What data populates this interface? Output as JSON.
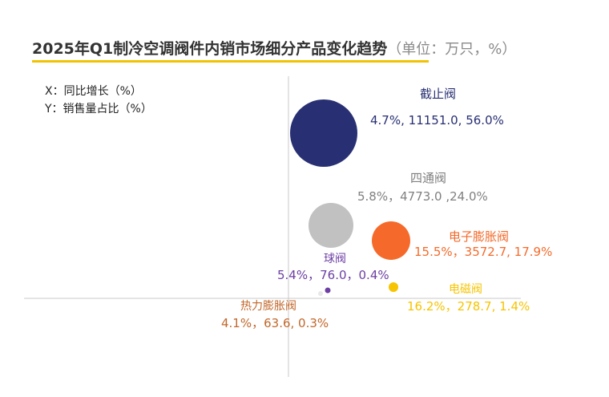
{
  "title": "2025年Q1制冷空调阀件内销市场细分产品变化趋势",
  "unit": "（单位：万只，%）",
  "axis_notes": {
    "x": "X：同比增长（%）",
    "y": "Y：销售量占比（%）"
  },
  "colors": {
    "navy": "#283073",
    "gray": "#c1c1c1",
    "orange": "#f56a2a",
    "purple": "#6d3fa3",
    "yellow": "#f6c400",
    "brown": "#c2672a",
    "gray_text": "#808080"
  },
  "chart_data": {
    "type": "scatter",
    "title": "2025年Q1制冷空调阀件内销市场细分产品变化趋势",
    "xlabel": "同比增长（%）",
    "ylabel": "销售量占比（%）",
    "grid": false,
    "points": [
      {
        "name": "截止阀",
        "x": 4.7,
        "y": 56.0,
        "volume": 11151.0,
        "label": "4.7%, 11151.0, 56.0%",
        "color": "#283073"
      },
      {
        "name": "四通阀",
        "x": 5.8,
        "y": 24.0,
        "volume": 4773.0,
        "label": "5.8%，4773.0 ,24.0%",
        "color": "#c1c1c1"
      },
      {
        "name": "电子膨胀阀",
        "x": 15.5,
        "y": 17.9,
        "volume": 3572.7,
        "label": "15.5%，3572.7, 17.9%",
        "color": "#f56a2a"
      },
      {
        "name": "球阀",
        "x": 5.4,
        "y": 0.4,
        "volume": 76.0,
        "label": "5.4%，76.0，0.4%",
        "color": "#6d3fa3"
      },
      {
        "name": "电磁阀",
        "x": 16.2,
        "y": 1.4,
        "volume": 278.7,
        "label": "16.2%，278.7, 1.4%",
        "color": "#f6c400"
      },
      {
        "name": "热力膨胀阀",
        "x": 4.1,
        "y": 0.3,
        "volume": 63.6,
        "label": "4.1%，63.6, 0.3%",
        "color": "#e8e8e8"
      }
    ]
  }
}
